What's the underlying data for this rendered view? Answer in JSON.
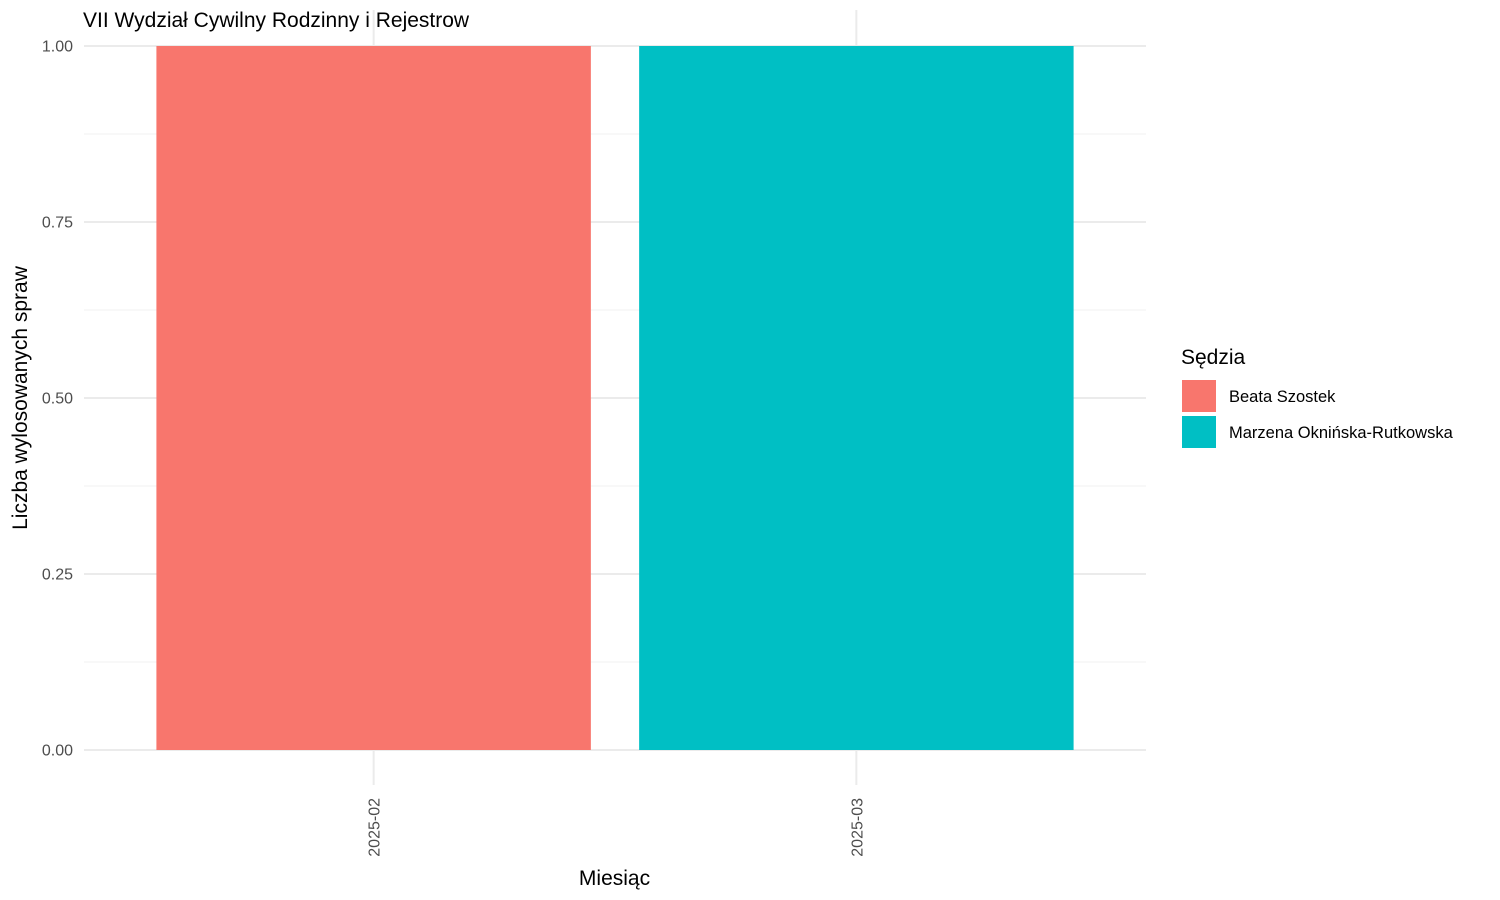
{
  "chart_data": {
    "type": "bar",
    "title": "VII Wydział Cywilny Rodzinny i Rejestrow",
    "xlabel": "Miesiąc",
    "ylabel": "Liczba wylosowanych spraw",
    "categories": [
      "2025-02",
      "2025-03"
    ],
    "series": [
      {
        "name": "Beata Szostek",
        "color": "#F8766D",
        "values": [
          1,
          0
        ]
      },
      {
        "name": "Marzena Oknińska-Rutkowska",
        "color": "#00BFC4",
        "values": [
          0,
          1
        ]
      }
    ],
    "ylim": [
      0,
      1
    ],
    "yticks": [
      "0.00",
      "0.25",
      "0.50",
      "0.75",
      "1.00"
    ],
    "ytick_values": [
      0,
      0.25,
      0.5,
      0.75,
      1
    ],
    "grid": true,
    "stacked": true,
    "legend": {
      "title": "Sędzia",
      "placement": "right"
    }
  }
}
